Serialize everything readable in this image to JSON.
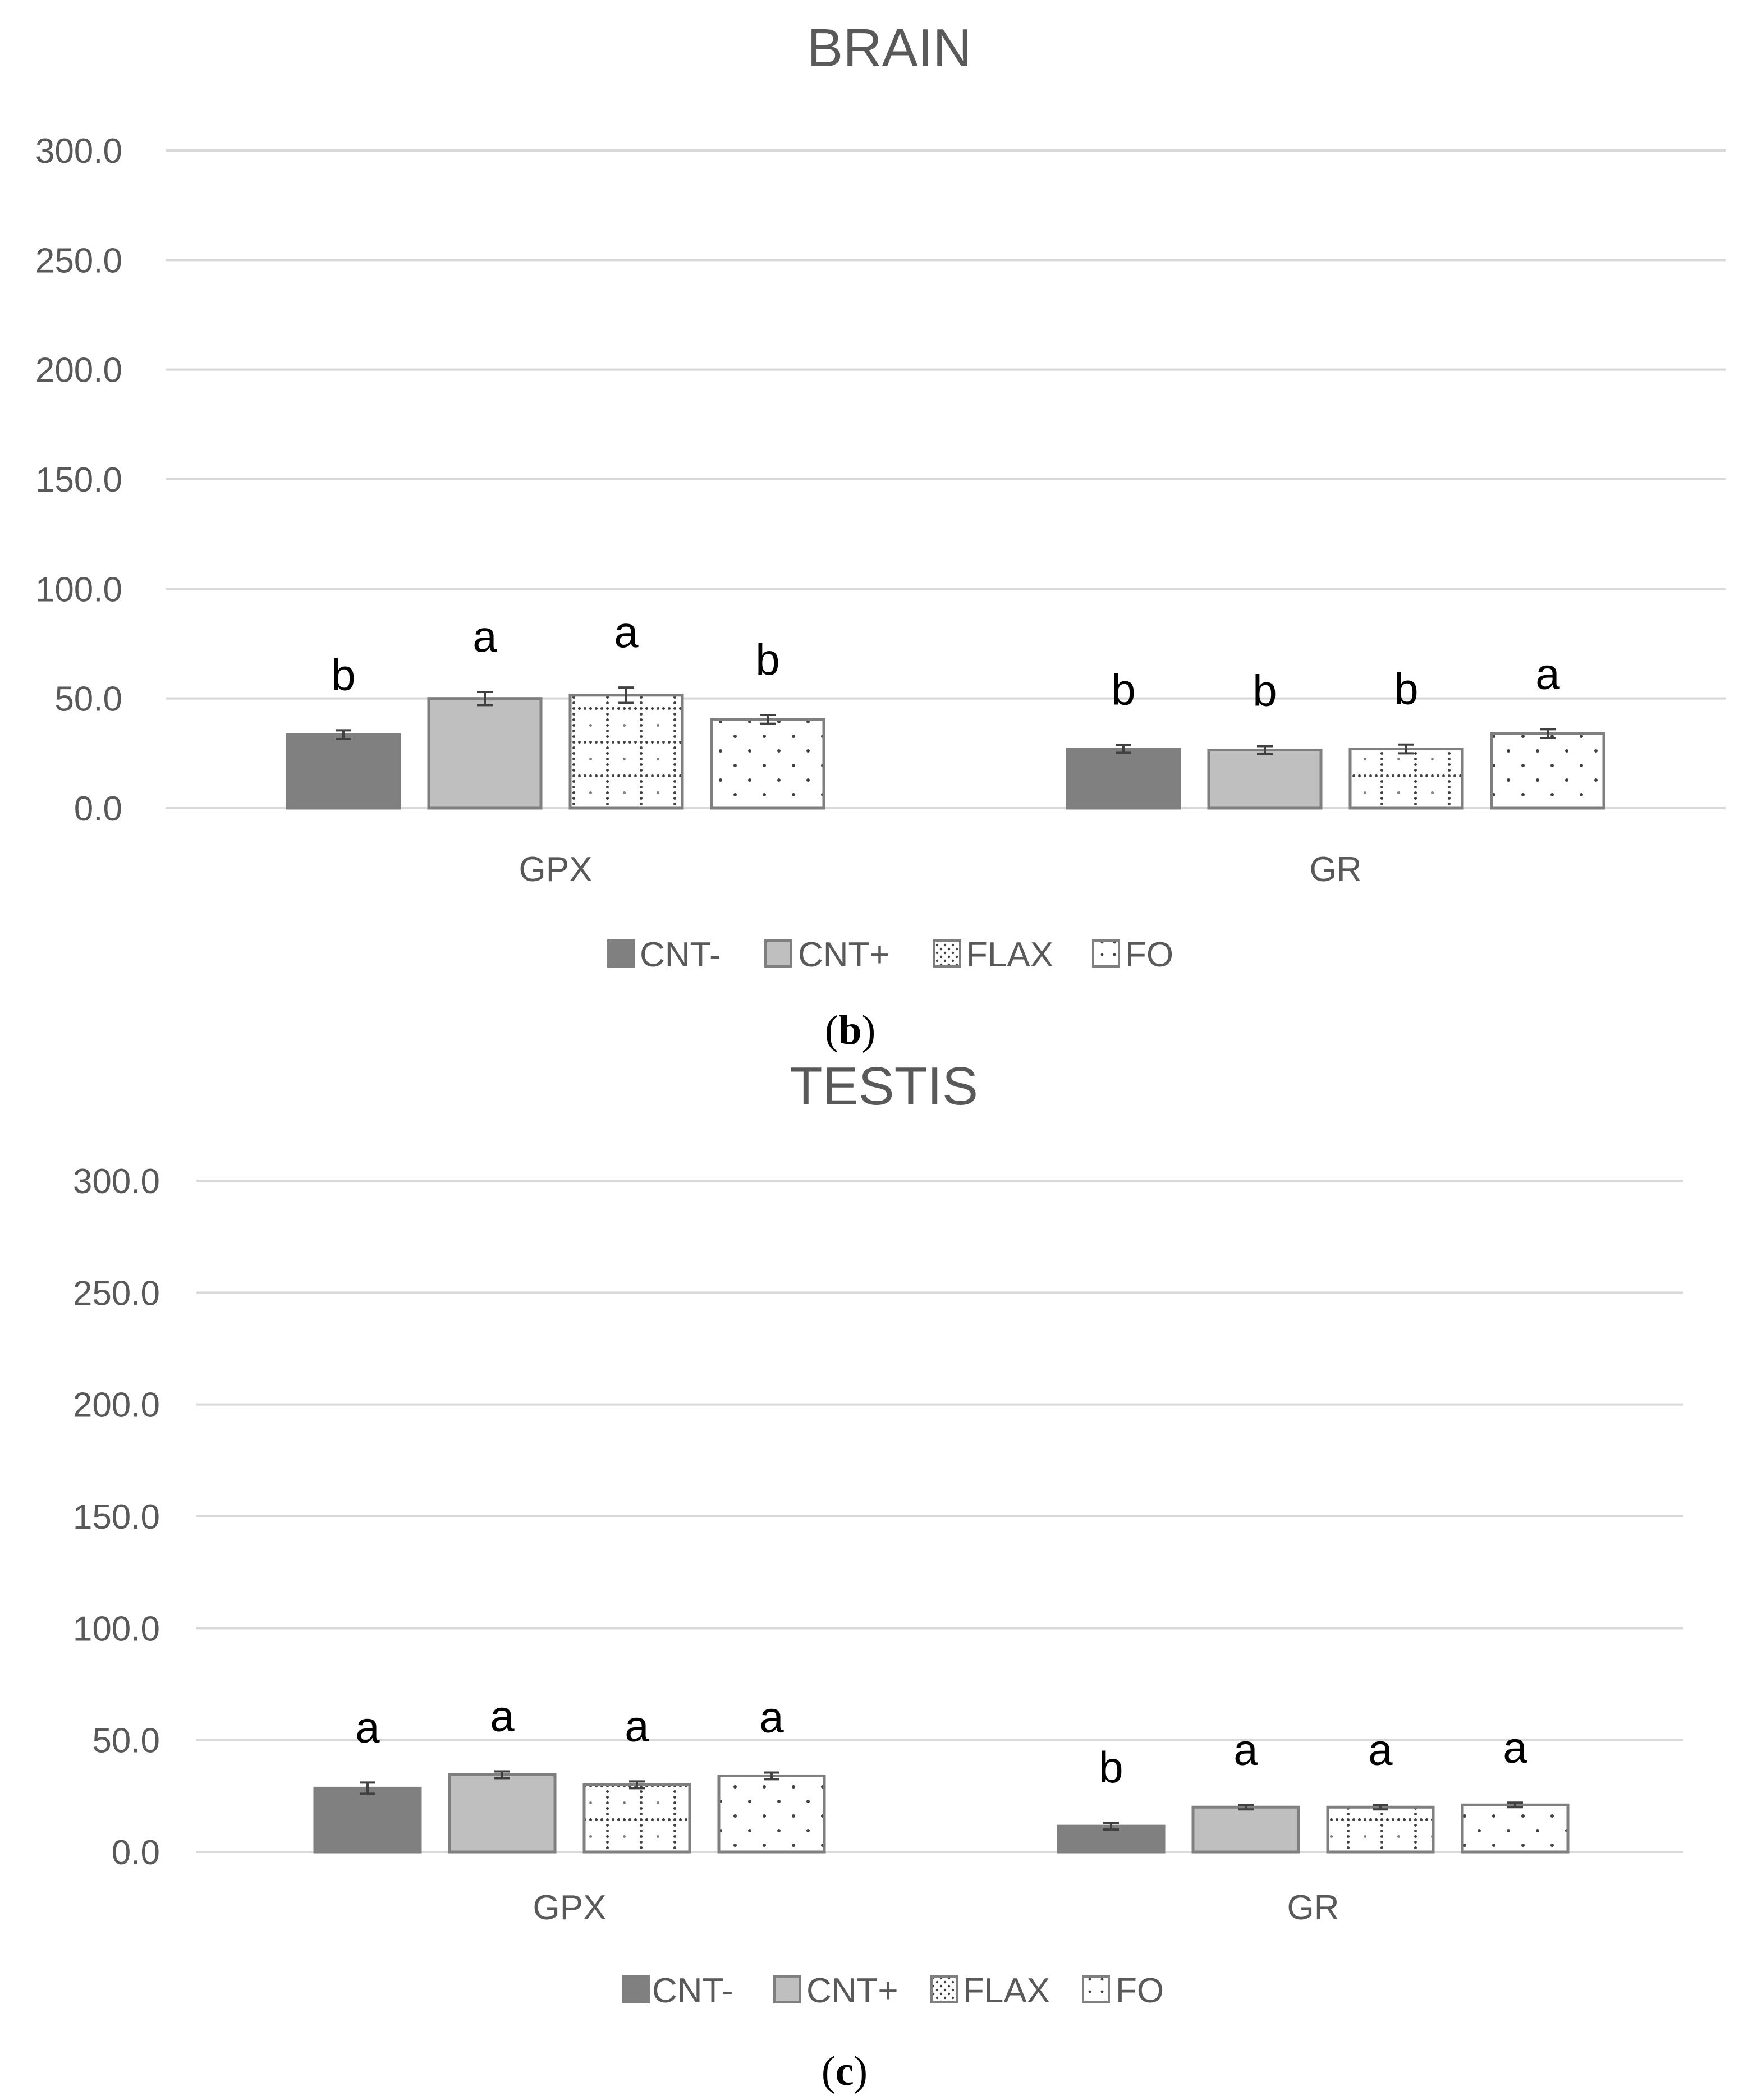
{
  "colors": {
    "CNT-": "#808080",
    "CNT+": "#bfbfbf",
    "FLAX": "#ffffff",
    "FO": "#ffffff",
    "gridline": "#d9d9d9",
    "bar_outline": "#7f7f7f",
    "text": "#595959"
  },
  "chart_data": [
    {
      "type": "bar",
      "title": "BRAIN",
      "panel_label": "b",
      "categories": [
        "GPX",
        "GR"
      ],
      "series": [
        {
          "name": "CNT-",
          "values": [
            33.5,
            27.0
          ],
          "errors": [
            2.0,
            1.8
          ],
          "letters": [
            "b",
            "b"
          ],
          "fill": "solid-dark"
        },
        {
          "name": "CNT+",
          "values": [
            50.0,
            26.5
          ],
          "errors": [
            3.0,
            1.8
          ],
          "letters": [
            "a",
            "b"
          ],
          "fill": "solid-light"
        },
        {
          "name": "FLAX",
          "values": [
            51.5,
            27.0
          ],
          "errors": [
            3.5,
            2.0
          ],
          "letters": [
            "a",
            "b"
          ],
          "fill": "grid-dots"
        },
        {
          "name": "FO",
          "values": [
            40.5,
            34.0
          ],
          "errors": [
            2.0,
            2.0
          ],
          "letters": [
            "b",
            "a"
          ],
          "fill": "sparse-dots"
        }
      ],
      "yticks": [
        "0.0",
        "50.0",
        "100.0",
        "150.0",
        "200.0",
        "250.0",
        "300.0"
      ],
      "ylim": [
        0,
        300
      ],
      "xlabel": "",
      "ylabel": "",
      "grid": true,
      "legend": "bottom",
      "legend_entries": [
        "CNT-",
        "CNT+",
        "FLAX",
        "FO"
      ]
    },
    {
      "type": "bar",
      "title": "TESTIS",
      "panel_label": "c",
      "categories": [
        "GPX",
        "GR"
      ],
      "series": [
        {
          "name": "CNT-",
          "values": [
            28.5,
            11.5
          ],
          "errors": [
            2.5,
            1.5
          ],
          "letters": [
            "a",
            "b"
          ],
          "fill": "solid-dark"
        },
        {
          "name": "CNT+",
          "values": [
            34.5,
            20.0
          ],
          "errors": [
            1.5,
            1.0
          ],
          "letters": [
            "a",
            "a"
          ],
          "fill": "solid-light"
        },
        {
          "name": "FLAX",
          "values": [
            30.0,
            20.0
          ],
          "errors": [
            1.5,
            1.0
          ],
          "letters": [
            "a",
            "a"
          ],
          "fill": "grid-dots"
        },
        {
          "name": "FO",
          "values": [
            34.0,
            21.0
          ],
          "errors": [
            1.5,
            1.0
          ],
          "letters": [
            "a",
            "a"
          ],
          "fill": "sparse-dots"
        }
      ],
      "yticks": [
        "0.0",
        "50.0",
        "100.0",
        "150.0",
        "200.0",
        "250.0",
        "300.0"
      ],
      "ylim": [
        0,
        300
      ],
      "xlabel": "",
      "ylabel": "",
      "grid": true,
      "legend": "bottom",
      "legend_entries": [
        "CNT-",
        "CNT+",
        "FLAX",
        "FO"
      ]
    }
  ]
}
